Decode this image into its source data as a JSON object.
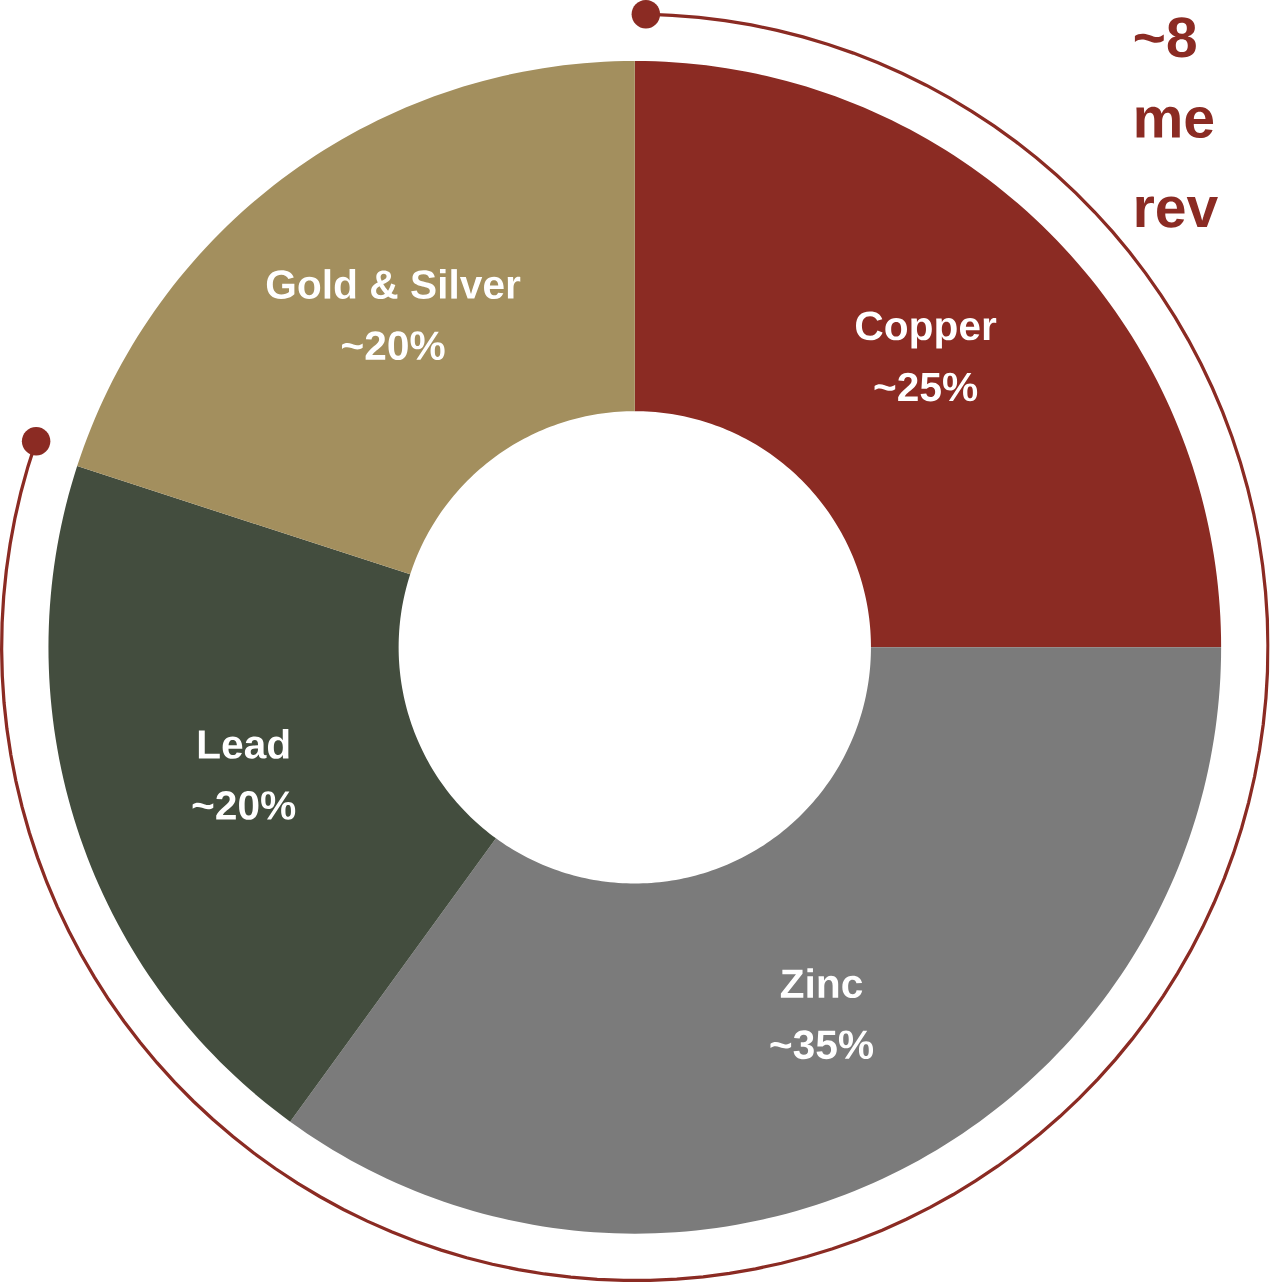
{
  "chart_data": {
    "type": "donut",
    "categories": [
      "Copper",
      "Zinc",
      "Lead",
      "Gold & Silver"
    ],
    "values": [
      25,
      35,
      20,
      20
    ],
    "value_labels": [
      "~25%",
      "~35%",
      "~20%",
      "~20%"
    ],
    "colors": [
      "#8b2b23",
      "#7b7b7b",
      "#434d3e",
      "#a38f5e"
    ],
    "annotations": [
      "~8",
      "me",
      "rev"
    ]
  }
}
